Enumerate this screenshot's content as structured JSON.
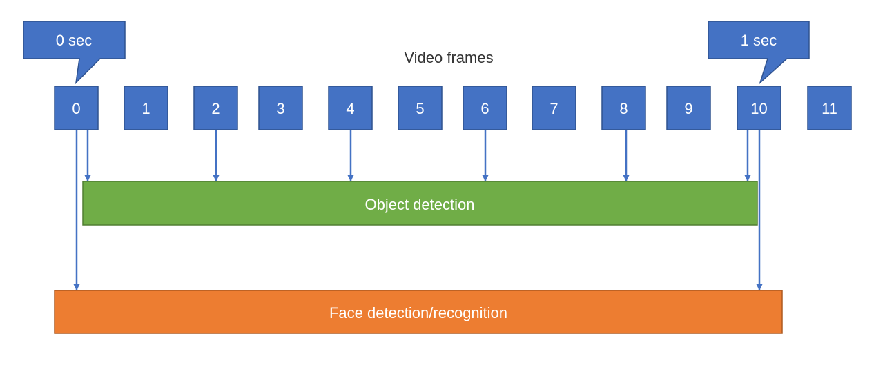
{
  "title": "Video frames",
  "callouts": {
    "start": "0 sec",
    "end": "1 sec"
  },
  "frames": [
    "0",
    "1",
    "2",
    "3",
    "4",
    "5",
    "6",
    "7",
    "8",
    "9",
    "10",
    "11"
  ],
  "stages": {
    "object": {
      "label": "Object detection",
      "frames": [
        0,
        2,
        4,
        6,
        8,
        10
      ]
    },
    "face": {
      "label": "Face detection/recognition",
      "frames": [
        0,
        10
      ]
    }
  },
  "colors": {
    "frame": "#4472C4",
    "frame_border": "#2F528F",
    "object": "#70AD47",
    "object_border": "#507E32",
    "face": "#ED7D31",
    "face_border": "#AE5A21",
    "arrow": "#4472C4"
  }
}
